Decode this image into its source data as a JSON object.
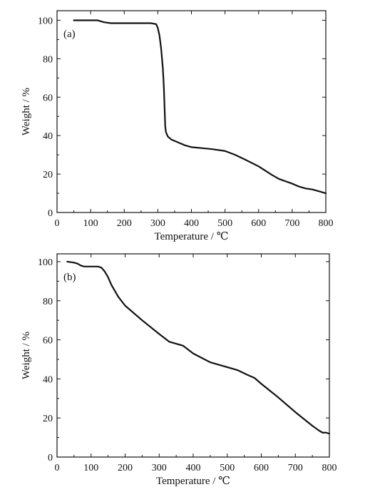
{
  "chart_data": [
    {
      "type": "line",
      "panel_label": "(a)",
      "xlabel": "Temperature / ℃",
      "ylabel": "Weight / %",
      "xlim": [
        0,
        800
      ],
      "ylim": [
        0,
        105
      ],
      "xticks": [
        0,
        100,
        200,
        300,
        400,
        500,
        600,
        700,
        800
      ],
      "yticks": [
        0,
        20,
        40,
        60,
        80,
        100
      ],
      "grid": false,
      "series": [
        {
          "x": [
            50,
            80,
            120,
            140,
            160,
            180,
            200,
            240,
            280,
            295,
            300,
            305,
            310,
            315,
            318,
            320,
            322,
            324,
            326,
            330,
            340,
            360,
            380,
            400,
            430,
            460,
            500,
            530,
            560,
            600,
            640,
            660,
            700,
            720,
            740,
            760,
            780,
            800
          ],
          "y": [
            100,
            100,
            100,
            99,
            98.5,
            98.5,
            98.5,
            98.5,
            98.5,
            98,
            96,
            92,
            85,
            75,
            65,
            55,
            45,
            42,
            41,
            39.5,
            38,
            36.5,
            35,
            34,
            33.5,
            33,
            32,
            30,
            27.5,
            24,
            19.5,
            17.5,
            15,
            13.5,
            12.5,
            12,
            11,
            10
          ]
        }
      ]
    },
    {
      "type": "line",
      "panel_label": "(b)",
      "xlabel": "Temperature / ℃",
      "ylabel": "Weight / %",
      "xlim": [
        0,
        800
      ],
      "ylim": [
        0,
        104
      ],
      "xticks": [
        0,
        100,
        200,
        300,
        400,
        500,
        600,
        700,
        800
      ],
      "yticks": [
        0,
        20,
        40,
        60,
        80,
        100
      ],
      "grid": false,
      "series": [
        {
          "x": [
            30,
            50,
            60,
            70,
            80,
            100,
            120,
            130,
            140,
            150,
            160,
            180,
            200,
            250,
            300,
            330,
            350,
            370,
            400,
            450,
            500,
            530,
            560,
            580,
            600,
            650,
            700,
            750,
            770,
            780,
            790,
            800
          ],
          "y": [
            100,
            99.5,
            99,
            98,
            97.5,
            97.5,
            97.5,
            97,
            95,
            92,
            88,
            82,
            77.5,
            70,
            63,
            59,
            58,
            57,
            53,
            48.5,
            46,
            44.5,
            42,
            40.5,
            37.5,
            30.5,
            23,
            16,
            13.5,
            12.5,
            12.5,
            12
          ]
        }
      ]
    }
  ]
}
